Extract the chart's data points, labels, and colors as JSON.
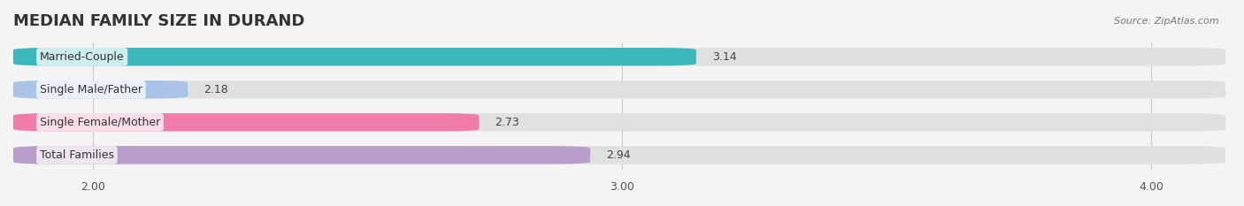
{
  "title": "MEDIAN FAMILY SIZE IN DURAND",
  "source": "Source: ZipAtlas.com",
  "categories": [
    "Married-Couple",
    "Single Male/Father",
    "Single Female/Mother",
    "Total Families"
  ],
  "values": [
    3.14,
    2.18,
    2.73,
    2.94
  ],
  "colors": [
    "#3ab8bc",
    "#aac4e8",
    "#f07caa",
    "#b89ec8"
  ],
  "xlim": [
    1.85,
    4.15
  ],
  "xticks": [
    2.0,
    3.0,
    4.0
  ],
  "bar_height": 0.55,
  "background_color": "#f4f4f4",
  "bar_bg_color": "#e8e8e8",
  "label_fontsize": 9,
  "value_fontsize": 9,
  "title_fontsize": 13,
  "tick_fontsize": 9
}
